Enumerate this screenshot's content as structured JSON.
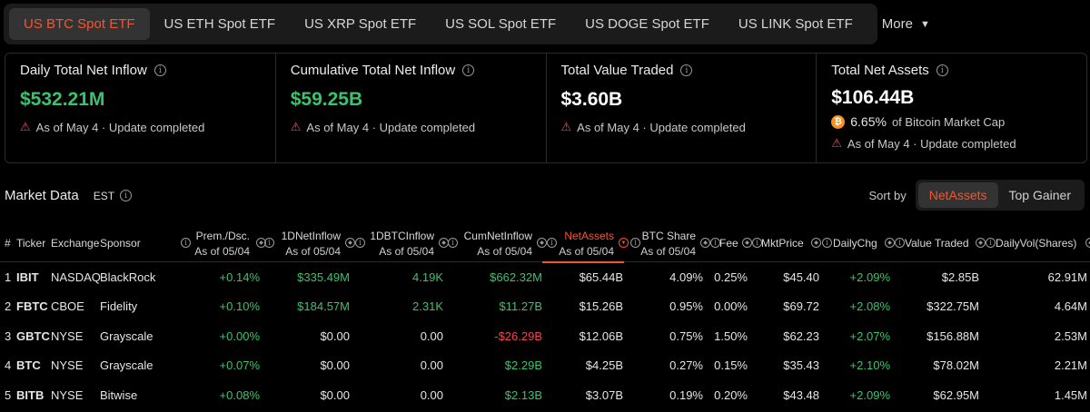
{
  "tabs": [
    {
      "label": "US BTC Spot ETF",
      "active": true
    },
    {
      "label": "US ETH Spot ETF",
      "active": false
    },
    {
      "label": "US XRP Spot ETF",
      "active": false
    },
    {
      "label": "US SOL Spot ETF",
      "active": false
    },
    {
      "label": "US DOGE Spot ETF",
      "active": false
    },
    {
      "label": "US LINK Spot ETF",
      "active": false
    }
  ],
  "tabs_more": "More",
  "stats": {
    "daily": {
      "title": "Daily Total Net Inflow",
      "value": "$532.21M",
      "note": "As of May 4 · Update completed"
    },
    "cumulative": {
      "title": "Cumulative Total Net Inflow",
      "value": "$59.25B",
      "note": "As of May 4 · Update completed"
    },
    "traded": {
      "title": "Total Value Traded",
      "value": "$3.60B",
      "note": "As of May 4 · Update completed"
    },
    "assets": {
      "title": "Total Net Assets",
      "value": "$106.44B",
      "cap_pct": "6.65%",
      "cap_label": "of Bitcoin Market Cap",
      "note": "As of May 4 · Update completed"
    }
  },
  "market": {
    "title": "Market Data",
    "tz": "EST",
    "sort_label": "Sort by",
    "sort_options": [
      "NetAssets",
      "Top Gainer"
    ],
    "sort_active": "NetAssets"
  },
  "columns": {
    "num": "#",
    "ticker": "Ticker",
    "exchange": "Exchange",
    "sponsor": "Sponsor",
    "prem": {
      "l1": "Prem./Dsc.",
      "l2": "As of 05/04"
    },
    "inflow1d": {
      "l1": "1DNetInflow",
      "l2": "As of 05/04"
    },
    "btcinflow": {
      "l1": "1DBTCInflow",
      "l2": "As of 05/04"
    },
    "cumnet": {
      "l1": "CumNetInflow",
      "l2": "As of 05/04"
    },
    "netassets": {
      "l1": "NetAssets",
      "l2": "As of 05/04"
    },
    "btcshare": {
      "l1": "BTC Share",
      "l2": "As of 05/04"
    },
    "fee": "Fee",
    "mktprice": "MktPrice",
    "dailychg": "DailyChg",
    "valuetraded": "Value Traded",
    "dailyvol": "DailyVol(Shares)"
  },
  "rows": [
    {
      "n": "1",
      "ticker": "IBIT",
      "exchange": "NASDAQ",
      "sponsor": "BlackRock",
      "prem": "+0.14%",
      "inflow": "$335.49M",
      "btcin": "4.19K",
      "cum": "$662.32M",
      "assets": "$65.44B",
      "share": "4.09%",
      "fee": "0.25%",
      "price": "$45.40",
      "chg": "+2.09%",
      "traded": "$2.85B",
      "vol": "62.91M"
    },
    {
      "n": "2",
      "ticker": "FBTC",
      "exchange": "CBOE",
      "sponsor": "Fidelity",
      "prem": "+0.10%",
      "inflow": "$184.57M",
      "btcin": "2.31K",
      "cum": "$11.27B",
      "assets": "$15.26B",
      "share": "0.95%",
      "fee": "0.00%",
      "price": "$69.72",
      "chg": "+2.08%",
      "traded": "$322.75M",
      "vol": "4.64M"
    },
    {
      "n": "3",
      "ticker": "GBTC",
      "exchange": "NYSE",
      "sponsor": "Grayscale",
      "prem": "+0.00%",
      "inflow": "$0.00",
      "btcin": "0.00",
      "cum": "-$26.29B",
      "assets": "$12.06B",
      "share": "0.75%",
      "fee": "1.50%",
      "price": "$62.23",
      "chg": "+2.07%",
      "traded": "$156.88M",
      "vol": "2.53M"
    },
    {
      "n": "4",
      "ticker": "BTC",
      "exchange": "NYSE",
      "sponsor": "Grayscale",
      "prem": "+0.07%",
      "inflow": "$0.00",
      "btcin": "0.00",
      "cum": "$2.29B",
      "assets": "$4.25B",
      "share": "0.27%",
      "fee": "0.15%",
      "price": "$35.43",
      "chg": "+2.10%",
      "traded": "$78.02M",
      "vol": "2.21M"
    },
    {
      "n": "5",
      "ticker": "BITB",
      "exchange": "NYSE",
      "sponsor": "Bitwise",
      "prem": "+0.08%",
      "inflow": "$0.00",
      "btcin": "0.00",
      "cum": "$2.13B",
      "assets": "$3.07B",
      "share": "0.19%",
      "fee": "0.20%",
      "price": "$43.48",
      "chg": "+2.09%",
      "traded": "$62.95M",
      "vol": "1.45M"
    }
  ],
  "colors": {
    "accent": "#f4552d",
    "positive": "#3ac36b",
    "negative": "#f0454f",
    "warning": "#f3475b"
  }
}
